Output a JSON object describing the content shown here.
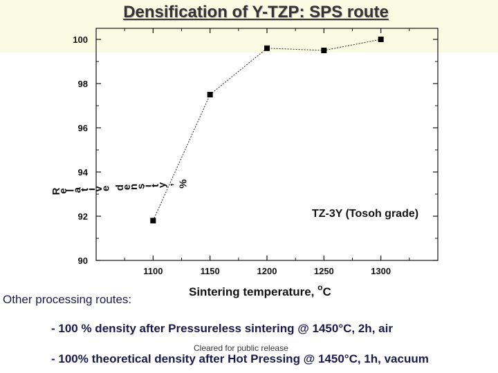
{
  "slide": {
    "title": "Densification of Y-TZP: SPS route",
    "other_routes_title": "Other processing routes:",
    "bullets": [
      "- 100 % density after Pressureless sintering @ 1450°C, 2h, air",
      "- 100% theoretical density after Hot Pressing @ 1450°C, 1h, vacuum"
    ],
    "footer": "Cleared for public release"
  },
  "chart_data": {
    "type": "line",
    "xlabel": "Sintering temperature, °C",
    "ylabel": "Relative density, %",
    "annotation": "TZ-3Y (Tosoh grade)",
    "x": [
      1100,
      1150,
      1200,
      1250,
      1300
    ],
    "series": [
      {
        "values": [
          91.8,
          97.5,
          99.6,
          99.5,
          100.0
        ]
      }
    ],
    "xlim": [
      1050,
      1350
    ],
    "ylim": [
      90,
      100.5
    ],
    "xticks": [
      1100,
      1150,
      1200,
      1250,
      1300
    ],
    "yticks": [
      90,
      92,
      94,
      96,
      98,
      100
    ],
    "marker": "square",
    "line_style": "dotted",
    "grid": false
  }
}
